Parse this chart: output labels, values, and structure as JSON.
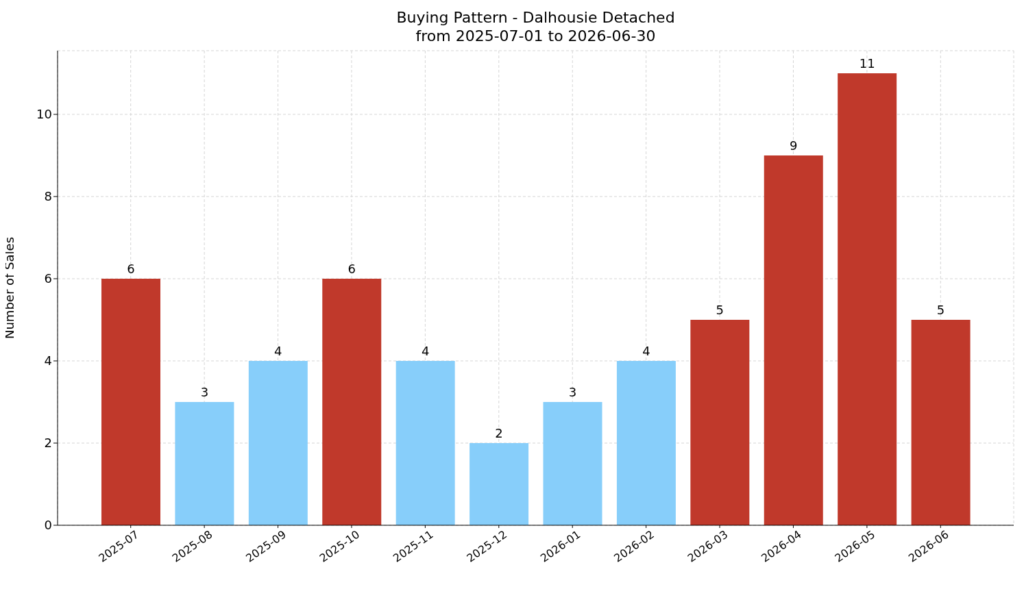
{
  "chart_data": {
    "type": "bar",
    "title": "Buying Pattern - Dalhousie Detached",
    "subtitle": "from 2025-07-01 to 2026-06-30",
    "ylabel": "Number of Sales",
    "categories": [
      "2025-07",
      "2025-08",
      "2025-09",
      "2025-10",
      "2025-11",
      "2025-12",
      "2026-01",
      "2026-02",
      "2026-03",
      "2026-04",
      "2026-05",
      "2026-06"
    ],
    "values": [
      6,
      3,
      4,
      6,
      4,
      2,
      3,
      4,
      5,
      9,
      11,
      5
    ],
    "colors": [
      "#c0392b",
      "#87cefa",
      "#87cefa",
      "#c0392b",
      "#87cefa",
      "#87cefa",
      "#87cefa",
      "#87cefa",
      "#c0392b",
      "#c0392b",
      "#c0392b",
      "#c0392b"
    ],
    "ylim": [
      0,
      11.55
    ],
    "yticks": [
      0,
      2,
      4,
      6,
      8,
      10
    ],
    "grid": true,
    "data_labels": true
  }
}
